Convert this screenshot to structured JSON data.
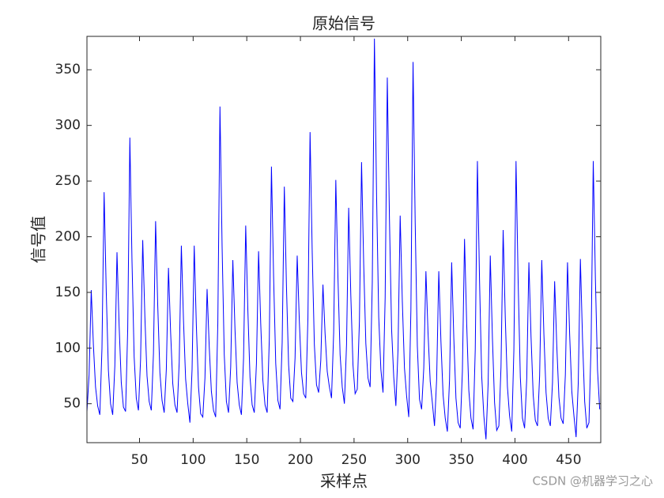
{
  "chart_data": {
    "type": "line",
    "title": "原始信号",
    "xlabel": "采样点",
    "ylabel": "信号值",
    "watermark": "CSDN @机器学习之心",
    "color": "#0000ff",
    "xlim": [
      1,
      480
    ],
    "ylim": [
      15,
      380
    ],
    "xticks": [
      50,
      100,
      150,
      200,
      250,
      300,
      350,
      400,
      450
    ],
    "yticks": [
      50,
      100,
      150,
      200,
      250,
      300,
      350
    ],
    "grid": false,
    "x": [
      1,
      3,
      5,
      7,
      9,
      11,
      13,
      15,
      17,
      19,
      21,
      23,
      25,
      27,
      29,
      31,
      33,
      35,
      37,
      39,
      41,
      43,
      45,
      47,
      49,
      51,
      53,
      55,
      57,
      59,
      61,
      63,
      65,
      67,
      69,
      71,
      73,
      75,
      77,
      79,
      81,
      83,
      85,
      87,
      89,
      91,
      93,
      95,
      97,
      99,
      101,
      103,
      105,
      107,
      109,
      111,
      113,
      115,
      117,
      119,
      121,
      123,
      125,
      127,
      129,
      131,
      133,
      135,
      137,
      139,
      141,
      143,
      145,
      147,
      149,
      151,
      153,
      155,
      157,
      159,
      161,
      163,
      165,
      167,
      169,
      171,
      173,
      175,
      177,
      179,
      181,
      183,
      185,
      187,
      189,
      191,
      193,
      195,
      197,
      199,
      201,
      203,
      205,
      207,
      209,
      211,
      213,
      215,
      217,
      219,
      221,
      223,
      225,
      227,
      229,
      231,
      233,
      235,
      237,
      239,
      241,
      243,
      245,
      247,
      249,
      251,
      253,
      255,
      257,
      259,
      261,
      263,
      265,
      267,
      269,
      271,
      273,
      275,
      277,
      279,
      281,
      283,
      285,
      287,
      289,
      291,
      293,
      295,
      297,
      299,
      301,
      303,
      305,
      307,
      309,
      311,
      313,
      315,
      317,
      319,
      321,
      323,
      325,
      327,
      329,
      331,
      333,
      335,
      337,
      339,
      341,
      343,
      345,
      347,
      349,
      351,
      353,
      355,
      357,
      359,
      361,
      363,
      365,
      367,
      369,
      371,
      373,
      375,
      377,
      379,
      381,
      383,
      385,
      387,
      389,
      391,
      393,
      395,
      397,
      399,
      401,
      403,
      405,
      407,
      409,
      411,
      413,
      415,
      417,
      419,
      421,
      423,
      425,
      427,
      429,
      431,
      433,
      435,
      437,
      439,
      441,
      443,
      445,
      447,
      449,
      451,
      453,
      455,
      457,
      459,
      461,
      463,
      465,
      467,
      469,
      471,
      473,
      475,
      477,
      479
    ],
    "values": [
      43,
      76,
      152,
      103,
      65,
      48,
      40,
      100,
      240,
      150,
      80,
      50,
      40,
      84,
      186,
      120,
      69,
      47,
      43,
      117,
      289,
      178,
      92,
      55,
      44,
      90,
      197,
      128,
      75,
      52,
      44,
      95,
      214,
      138,
      78,
      53,
      42,
      81,
      172,
      114,
      68,
      49,
      42,
      87,
      192,
      125,
      72,
      50,
      33,
      81,
      192,
      120,
      65,
      41,
      38,
      73,
      153,
      101,
      61,
      44,
      38,
      122,
      317,
      191,
      94,
      52,
      42,
      83,
      179,
      117,
      69,
      49,
      40,
      91,
      210,
      134,
      74,
      49,
      42,
      86,
      187,
      122,
      71,
      49,
      42,
      108,
      263,
      164,
      86,
      53,
      45,
      105,
      245,
      155,
      85,
      55,
      52,
      91,
      183,
      124,
      78,
      59,
      55,
      127,
      294,
      186,
      103,
      67,
      60,
      89,
      157,
      113,
      79,
      65,
      55,
      114,
      251,
      163,
      94,
      65,
      50,
      103,
      226,
      147,
      85,
      59,
      63,
      124,
      267,
      175,
      104,
      73,
      65,
      159,
      378,
      237,
      128,
      81,
      60,
      145,
      343,
      216,
      117,
      74,
      48,
      99,
      219,
      142,
      82,
      57,
      38,
      134,
      357,
      213,
      102,
      54,
      45,
      82,
      169,
      113,
      70,
      51,
      30,
      72,
      169,
      106,
      58,
      37,
      25,
      71,
      177,
      109,
      55,
      33,
      28,
      79,
      198,
      122,
      62,
      37,
      27,
      99,
      268,
      160,
      75,
      39,
      18,
      68,
      183,
      109,
      51,
      26,
      30,
      83,
      206,
      127,
      65,
      39,
      25,
      98,
      268,
      159,
      74,
      37,
      28,
      73,
      177,
      110,
      58,
      35,
      30,
      75,
      179,
      112,
      60,
      37,
      30,
      69,
      160,
      102,
      56,
      37,
      32,
      76,
      177,
      112,
      61,
      39,
      20,
      68,
      180,
      108,
      52,
      28,
      33,
      104,
      268,
      162,
      80,
      45
    ]
  }
}
